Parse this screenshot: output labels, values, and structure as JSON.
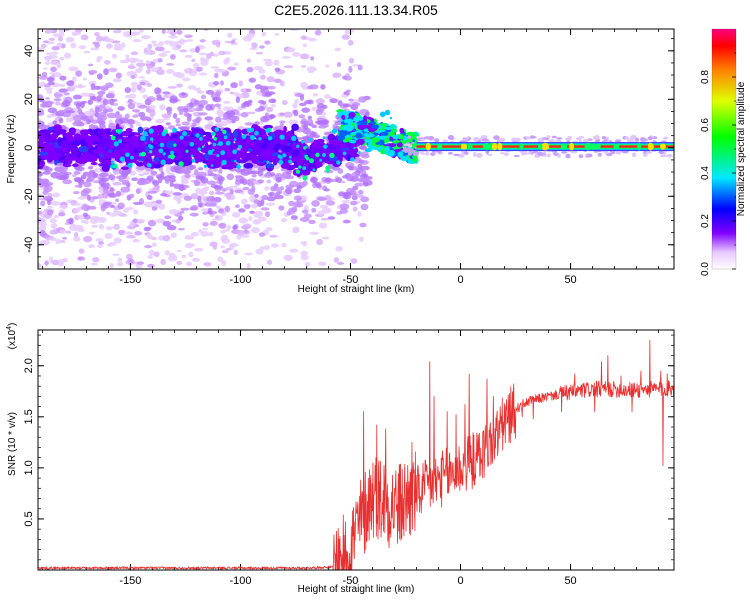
{
  "title": "C2E5.2026.111.13.34.R05",
  "chart_data": [
    {
      "type": "heatmap",
      "name": "spectrogram",
      "xlabel": "Height of straight line (km)",
      "ylabel": "Frequency (Hz)",
      "xlim": [
        -192,
        97
      ],
      "ylim": [
        -50,
        49
      ],
      "xticks": [
        -150,
        -100,
        -50,
        0,
        50
      ],
      "yticks": [
        -40,
        -20,
        0,
        20,
        40
      ],
      "colorbar": {
        "label": "Normalized spectral amplitude",
        "range": [
          0.0,
          1.0
        ],
        "ticks": [
          0.0,
          0.2,
          0.4,
          0.6,
          0.8
        ]
      },
      "description_points": {
        "scattered_noise_region_km": [
          -192,
          -55
        ],
        "transition_region_km": [
          -55,
          -20
        ],
        "tone_region_km": [
          -20,
          97
        ],
        "tone_frequency_hz": 0.5
      }
    },
    {
      "type": "line",
      "name": "snr",
      "xlabel": "Height of straight line (km)",
      "ylabel": "SNR (10 * v/v)",
      "exponent_label": "(x10",
      "exponent_value": "4",
      "exponent_close": ")",
      "xlim": [
        -192,
        97
      ],
      "ylim": [
        0,
        2.35
      ],
      "xticks": [
        -150,
        -100,
        -50,
        0,
        50
      ],
      "yticks": [
        0.5,
        1.0,
        1.5,
        2.0
      ],
      "ytick_labels": [
        "0.5",
        "1.0",
        "1.5",
        "2.0"
      ],
      "color": "#e83030",
      "envelope": [
        [
          -192,
          0.02
        ],
        [
          -70,
          0.02
        ],
        [
          -58,
          0.03
        ],
        [
          -52,
          0.12
        ],
        [
          -48,
          0.35
        ],
        [
          -44,
          0.55
        ],
        [
          -40,
          0.75
        ],
        [
          -36,
          0.7
        ],
        [
          -32,
          0.65
        ],
        [
          -28,
          0.62
        ],
        [
          -24,
          0.7
        ],
        [
          -20,
          0.75
        ],
        [
          -16,
          0.8
        ],
        [
          -12,
          0.85
        ],
        [
          -8,
          0.9
        ],
        [
          -4,
          0.95
        ],
        [
          0,
          1.0
        ],
        [
          4,
          1.05
        ],
        [
          8,
          1.1
        ],
        [
          12,
          1.2
        ],
        [
          16,
          1.3
        ],
        [
          20,
          1.45
        ],
        [
          24,
          1.55
        ],
        [
          28,
          1.62
        ],
        [
          32,
          1.66
        ],
        [
          40,
          1.7
        ],
        [
          50,
          1.74
        ],
        [
          60,
          1.77
        ],
        [
          70,
          1.77
        ],
        [
          80,
          1.76
        ],
        [
          97,
          1.78
        ]
      ],
      "spikes": [
        [
          -44,
          1.55
        ],
        [
          -38,
          1.42
        ],
        [
          -34,
          1.38
        ],
        [
          -22,
          1.25
        ],
        [
          -14,
          2.04
        ],
        [
          -12,
          1.7
        ],
        [
          -6,
          1.55
        ],
        [
          -2,
          1.52
        ],
        [
          2,
          1.62
        ],
        [
          4,
          1.92
        ],
        [
          12,
          1.87
        ],
        [
          15,
          1.7
        ],
        [
          18,
          1.6
        ],
        [
          22,
          1.7
        ],
        [
          52,
          1.92
        ],
        [
          64,
          2.04
        ],
        [
          67,
          2.1
        ],
        [
          73,
          1.9
        ],
        [
          78,
          2.1
        ],
        [
          82,
          1.95
        ],
        [
          86,
          2.25
        ],
        [
          91,
          1.95
        ],
        [
          94,
          1.92
        ]
      ],
      "dips": [
        [
          22,
          1.25
        ],
        [
          28,
          1.5
        ],
        [
          33,
          1.48
        ],
        [
          46,
          1.55
        ],
        [
          61,
          1.55
        ],
        [
          78,
          1.55
        ],
        [
          92,
          1.02
        ]
      ]
    }
  ]
}
